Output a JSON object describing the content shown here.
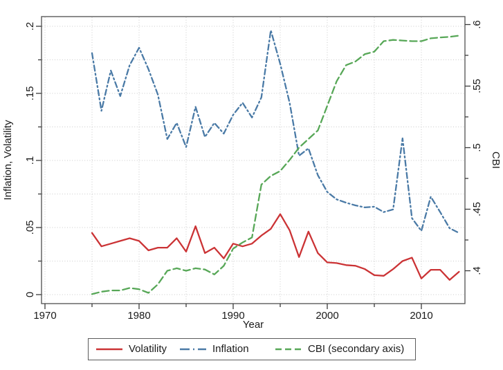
{
  "figure": {
    "background": "#ffffff",
    "plot_border_color": "#5a5a5a",
    "grid_color": "#c9c9c9"
  },
  "axes": {
    "x": {
      "label": "Year",
      "tick_labels": [
        "1970",
        "1980",
        "1990",
        "2000",
        "2010"
      ],
      "ticks_major": [
        1970,
        1980,
        1990,
        2000,
        2010
      ],
      "ticks_minor": [
        1975,
        1985,
        1995,
        2005
      ],
      "grid_years": [
        1970,
        1975,
        1980,
        1985,
        1990,
        1995,
        2000,
        2005,
        2010
      ]
    },
    "y_left": {
      "label": "Inflation, Volatility",
      "tick_labels": [
        "0",
        ".05",
        ".1",
        ".15",
        ".2"
      ],
      "ticks_major": [
        0,
        0.05,
        0.1,
        0.15,
        0.2
      ],
      "ticks_minor": [
        0.025,
        0.075,
        0.125,
        0.175
      ],
      "grid_values": [
        0,
        0.025,
        0.05,
        0.075,
        0.1,
        0.125,
        0.15,
        0.175,
        0.2
      ],
      "range": [
        0,
        0.2
      ]
    },
    "y_right": {
      "label": "CBI",
      "tick_labels": [
        ".4",
        ".45",
        ".5",
        ".55",
        ".6"
      ],
      "ticks_major": [
        0.4,
        0.45,
        0.5,
        0.55,
        0.6
      ],
      "ticks_minor": [
        0.425,
        0.475,
        0.525,
        0.575
      ],
      "range": [
        0.386,
        0.6
      ]
    }
  },
  "chart_data": {
    "type": "line",
    "x": [
      1975,
      1976,
      1977,
      1978,
      1979,
      1980,
      1981,
      1982,
      1983,
      1984,
      1985,
      1986,
      1987,
      1988,
      1989,
      1990,
      1991,
      1992,
      1993,
      1994,
      1995,
      1996,
      1997,
      1998,
      1999,
      2000,
      2001,
      2002,
      2003,
      2004,
      2005,
      2006,
      2007,
      2008,
      2009,
      2010,
      2011,
      2012,
      2013,
      2014
    ],
    "series": [
      {
        "name": "Volatility",
        "axis": "left",
        "color": "#cb3335",
        "line_style": "solid",
        "values": [
          0.046,
          0.036,
          0.038,
          0.04,
          0.042,
          0.04,
          0.033,
          0.035,
          0.035,
          0.042,
          0.032,
          0.051,
          0.031,
          0.035,
          0.027,
          0.038,
          0.036,
          0.038,
          0.044,
          0.049,
          0.06,
          0.048,
          0.028,
          0.047,
          0.031,
          0.024,
          0.0235,
          0.022,
          0.0215,
          0.019,
          0.0145,
          0.014,
          0.019,
          0.025,
          0.0275,
          0.012,
          0.0185,
          0.0185,
          0.011,
          0.017
        ]
      },
      {
        "name": "Inflation",
        "axis": "left",
        "color": "#4a7aa6",
        "line_style": "dash-dot",
        "values": [
          0.18,
          0.137,
          0.167,
          0.148,
          0.171,
          0.184,
          0.168,
          0.149,
          0.116,
          0.128,
          0.11,
          0.14,
          0.1175,
          0.128,
          0.12,
          0.134,
          0.143,
          0.132,
          0.147,
          0.197,
          0.172,
          0.143,
          0.1035,
          0.109,
          0.089,
          0.0765,
          0.071,
          0.0685,
          0.0665,
          0.065,
          0.0655,
          0.0615,
          0.0635,
          0.1165,
          0.057,
          0.0475,
          0.073,
          0.0615,
          0.0495,
          0.046
        ]
      },
      {
        "name": "CBI (secondary axis)",
        "axis": "right",
        "color": "#57a757",
        "line_style": "dash",
        "values": [
          0.381,
          0.383,
          0.384,
          0.384,
          0.386,
          0.385,
          0.382,
          0.389,
          0.4,
          0.402,
          0.4,
          0.402,
          0.401,
          0.397,
          0.404,
          0.418,
          0.423,
          0.427,
          0.47,
          0.477,
          0.481,
          0.49,
          0.5,
          0.507,
          0.514,
          0.534,
          0.554,
          0.567,
          0.57,
          0.576,
          0.578,
          0.5865,
          0.5875,
          0.587,
          0.5865,
          0.5865,
          0.5888,
          0.5895,
          0.59,
          0.591
        ]
      }
    ],
    "title": "",
    "xlabel": "Year",
    "ylabel_left": "Inflation, Volatility",
    "ylabel_right": "CBI",
    "legend_position": "bottom"
  },
  "legend": {
    "items": [
      {
        "label": "Volatility",
        "color": "#cb3335",
        "line_style": "solid"
      },
      {
        "label": "Inflation",
        "color": "#4a7aa6",
        "line_style": "dash-dot"
      },
      {
        "label": "CBI (secondary axis)",
        "color": "#57a757",
        "line_style": "dash"
      }
    ]
  }
}
